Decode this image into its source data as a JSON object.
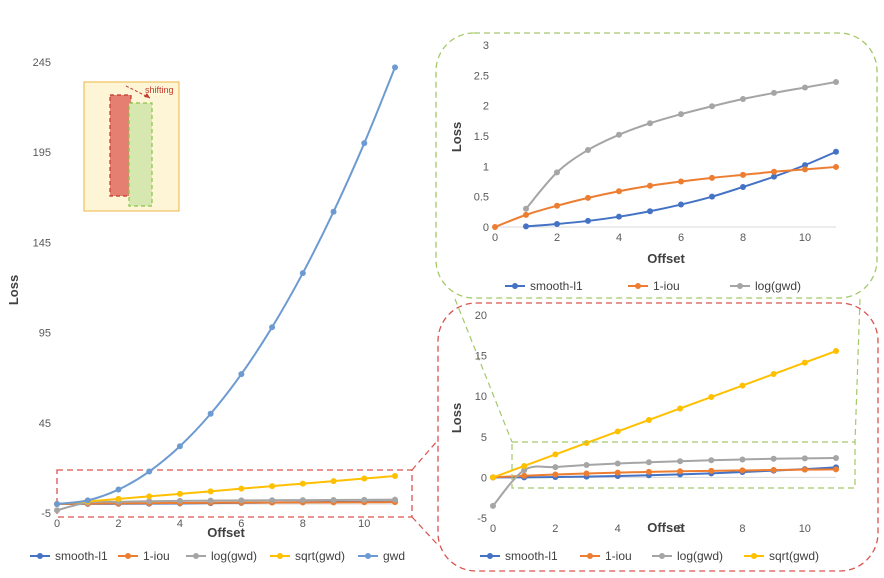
{
  "colors": {
    "smooth_l1": "#4472c4",
    "iou": "#ed7d31",
    "gwd_log": "#a5a5a5",
    "gwd_sqrt": "#ffc000",
    "gwd": "#6d9bd1",
    "red_box": "#e53935",
    "green_box": "#8bc34a",
    "inset_bg": "#fdf5d6",
    "inset_border": "#f0c060"
  },
  "inset": {
    "label": "shifting",
    "caption_icon": "dashed-rectangles-shifting-diagram"
  },
  "chart_data": [
    {
      "id": "main",
      "type": "line",
      "title": "",
      "xlabel": "Offset",
      "ylabel": "Loss",
      "xlim": [
        0,
        11
      ],
      "ylim": [
        -5,
        245
      ],
      "xticks": [
        0,
        2,
        4,
        6,
        8,
        10
      ],
      "yticks": [
        -5,
        45,
        95,
        145,
        195,
        245
      ],
      "legend_position": "bottom",
      "series": [
        {
          "key": "smooth_l1",
          "name": "smooth-l1",
          "x": [
            0,
            1,
            2,
            3,
            4,
            5,
            6,
            7,
            8,
            9,
            10,
            11
          ],
          "y": [
            0,
            0.03,
            0.1,
            0.18,
            0.3,
            0.45,
            0.62,
            0.8,
            0.98,
            1.12,
            1.2,
            1.26
          ]
        },
        {
          "key": "iou",
          "name": "1-iou",
          "x": [
            0,
            1,
            2,
            3,
            4,
            5,
            6,
            7,
            8,
            9,
            10,
            11
          ],
          "y": [
            0,
            0.18,
            0.33,
            0.46,
            0.57,
            0.67,
            0.75,
            0.82,
            0.88,
            0.92,
            0.96,
            1.0
          ]
        },
        {
          "key": "gwd_log",
          "name": "log(gwd)",
          "x": [
            0,
            1,
            2,
            3,
            4,
            5,
            6,
            7,
            8,
            9,
            10,
            11
          ],
          "y": [
            -3.5,
            0.8,
            1.2,
            1.5,
            1.7,
            1.85,
            1.97,
            2.07,
            2.15,
            2.23,
            2.3,
            2.38
          ]
        },
        {
          "key": "gwd_sqrt",
          "name": "sqrt(gwd)",
          "x": [
            0,
            1,
            2,
            3,
            4,
            5,
            6,
            7,
            8,
            9,
            10,
            11
          ],
          "y": [
            0,
            1.4,
            2.8,
            4.2,
            5.6,
            7.0,
            8.5,
            9.9,
            11.3,
            12.7,
            14.1,
            15.5
          ]
        },
        {
          "key": "gwd",
          "name": "gwd",
          "x": [
            0,
            1,
            2,
            3,
            4,
            5,
            6,
            7,
            8,
            9,
            10,
            11
          ],
          "y": [
            0,
            2,
            8,
            18,
            32,
            50,
            72,
            98,
            128,
            162,
            200,
            242
          ]
        }
      ]
    },
    {
      "id": "zoom_top",
      "type": "line",
      "title": "",
      "xlabel": "Offset",
      "ylabel": "Loss",
      "xlim": [
        0,
        11
      ],
      "ylim": [
        0,
        3
      ],
      "xticks": [
        0,
        2,
        4,
        6,
        8,
        10
      ],
      "yticks": [
        0,
        0.5,
        1,
        1.5,
        2,
        2.5,
        3
      ],
      "legend_position": "bottom",
      "series": [
        {
          "key": "smooth_l1",
          "name": "smooth-l1",
          "x": [
            1,
            2,
            3,
            4,
            5,
            6,
            7,
            8,
            9,
            10,
            11
          ],
          "y": [
            0.01,
            0.05,
            0.1,
            0.17,
            0.26,
            0.37,
            0.5,
            0.66,
            0.83,
            1.02,
            1.24
          ]
        },
        {
          "key": "iou",
          "name": "1-iou",
          "x": [
            0,
            1,
            2,
            3,
            4,
            5,
            6,
            7,
            8,
            9,
            10,
            11
          ],
          "y": [
            0,
            0.2,
            0.35,
            0.48,
            0.59,
            0.68,
            0.75,
            0.81,
            0.86,
            0.91,
            0.95,
            0.99
          ]
        },
        {
          "key": "gwd_log",
          "name": "log(gwd)",
          "x": [
            1,
            2,
            3,
            4,
            5,
            6,
            7,
            8,
            9,
            10,
            11
          ],
          "y": [
            0.3,
            0.9,
            1.27,
            1.52,
            1.71,
            1.86,
            1.99,
            2.11,
            2.21,
            2.3,
            2.39
          ]
        }
      ]
    },
    {
      "id": "zoom_bottom",
      "type": "line",
      "title": "",
      "xlabel": "Offset",
      "ylabel": "Loss",
      "xlim": [
        0,
        11
      ],
      "ylim": [
        -5,
        20
      ],
      "xticks": [
        0,
        2,
        4,
        6,
        8,
        10
      ],
      "yticks": [
        -5,
        0,
        5,
        10,
        15,
        20
      ],
      "legend_position": "bottom",
      "series": [
        {
          "key": "smooth_l1",
          "name": "smooth-l1",
          "x": [
            0,
            1,
            2,
            3,
            4,
            5,
            6,
            7,
            8,
            9,
            10,
            11
          ],
          "y": [
            0,
            0.01,
            0.05,
            0.1,
            0.17,
            0.26,
            0.37,
            0.5,
            0.66,
            0.83,
            1.02,
            1.24
          ]
        },
        {
          "key": "iou",
          "name": "1-iou",
          "x": [
            0,
            1,
            2,
            3,
            4,
            5,
            6,
            7,
            8,
            9,
            10,
            11
          ],
          "y": [
            0,
            0.2,
            0.35,
            0.48,
            0.59,
            0.68,
            0.75,
            0.81,
            0.86,
            0.91,
            0.95,
            0.99
          ]
        },
        {
          "key": "gwd_log",
          "name": "log(gwd)",
          "x": [
            0,
            1,
            2,
            3,
            4,
            5,
            6,
            7,
            8,
            9,
            10,
            11
          ],
          "y": [
            -3.5,
            0.9,
            1.27,
            1.52,
            1.71,
            1.86,
            1.99,
            2.11,
            2.21,
            2.3,
            2.35,
            2.39
          ]
        },
        {
          "key": "gwd_sqrt",
          "name": "sqrt(gwd)",
          "x": [
            0,
            1,
            2,
            3,
            4,
            5,
            6,
            7,
            8,
            9,
            10,
            11
          ],
          "y": [
            0,
            1.41,
            2.83,
            4.24,
            5.66,
            7.07,
            8.49,
            9.9,
            11.31,
            12.73,
            14.14,
            15.56
          ]
        }
      ]
    }
  ]
}
